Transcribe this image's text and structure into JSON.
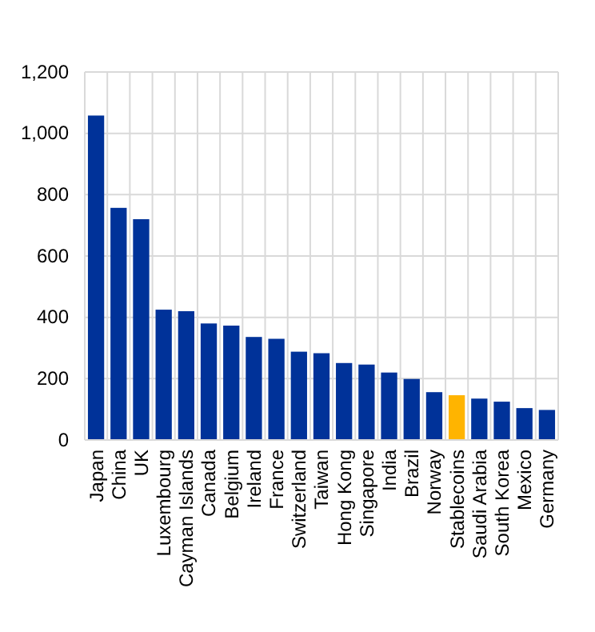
{
  "chart_data": {
    "type": "bar",
    "categories": [
      "Japan",
      "China",
      "UK",
      "Luxembourg",
      "Cayman Islands",
      "Canada",
      "Belgium",
      "Ireland",
      "France",
      "Switzerland",
      "Taiwan",
      "Hong Kong",
      "Singapore",
      "India",
      "Brazil",
      "Norway",
      "Stablecoins",
      "Saudi Arabia",
      "South Korea",
      "Mexico",
      "Germany"
    ],
    "values": [
      1058,
      757,
      720,
      425,
      420,
      380,
      373,
      336,
      330,
      288,
      283,
      251,
      246,
      220,
      199,
      156,
      146,
      135,
      125,
      104,
      98
    ],
    "colors": [
      "#003299",
      "#003299",
      "#003299",
      "#003299",
      "#003299",
      "#003299",
      "#003299",
      "#003299",
      "#003299",
      "#003299",
      "#003299",
      "#003299",
      "#003299",
      "#003299",
      "#003299",
      "#003299",
      "#ffb400",
      "#003299",
      "#003299",
      "#003299",
      "#003299"
    ],
    "ylim": [
      0,
      1200
    ],
    "yticks": [
      0,
      {
        "value": 200,
        "label": "200"
      },
      {
        "value": 400,
        "label": "400"
      },
      {
        "value": 600,
        "label": "600"
      },
      {
        "value": 800,
        "label": "800"
      },
      {
        "value": 1000,
        "label": "1,000"
      },
      {
        "value": 1200,
        "label": "1,200"
      }
    ],
    "grid": true
  }
}
